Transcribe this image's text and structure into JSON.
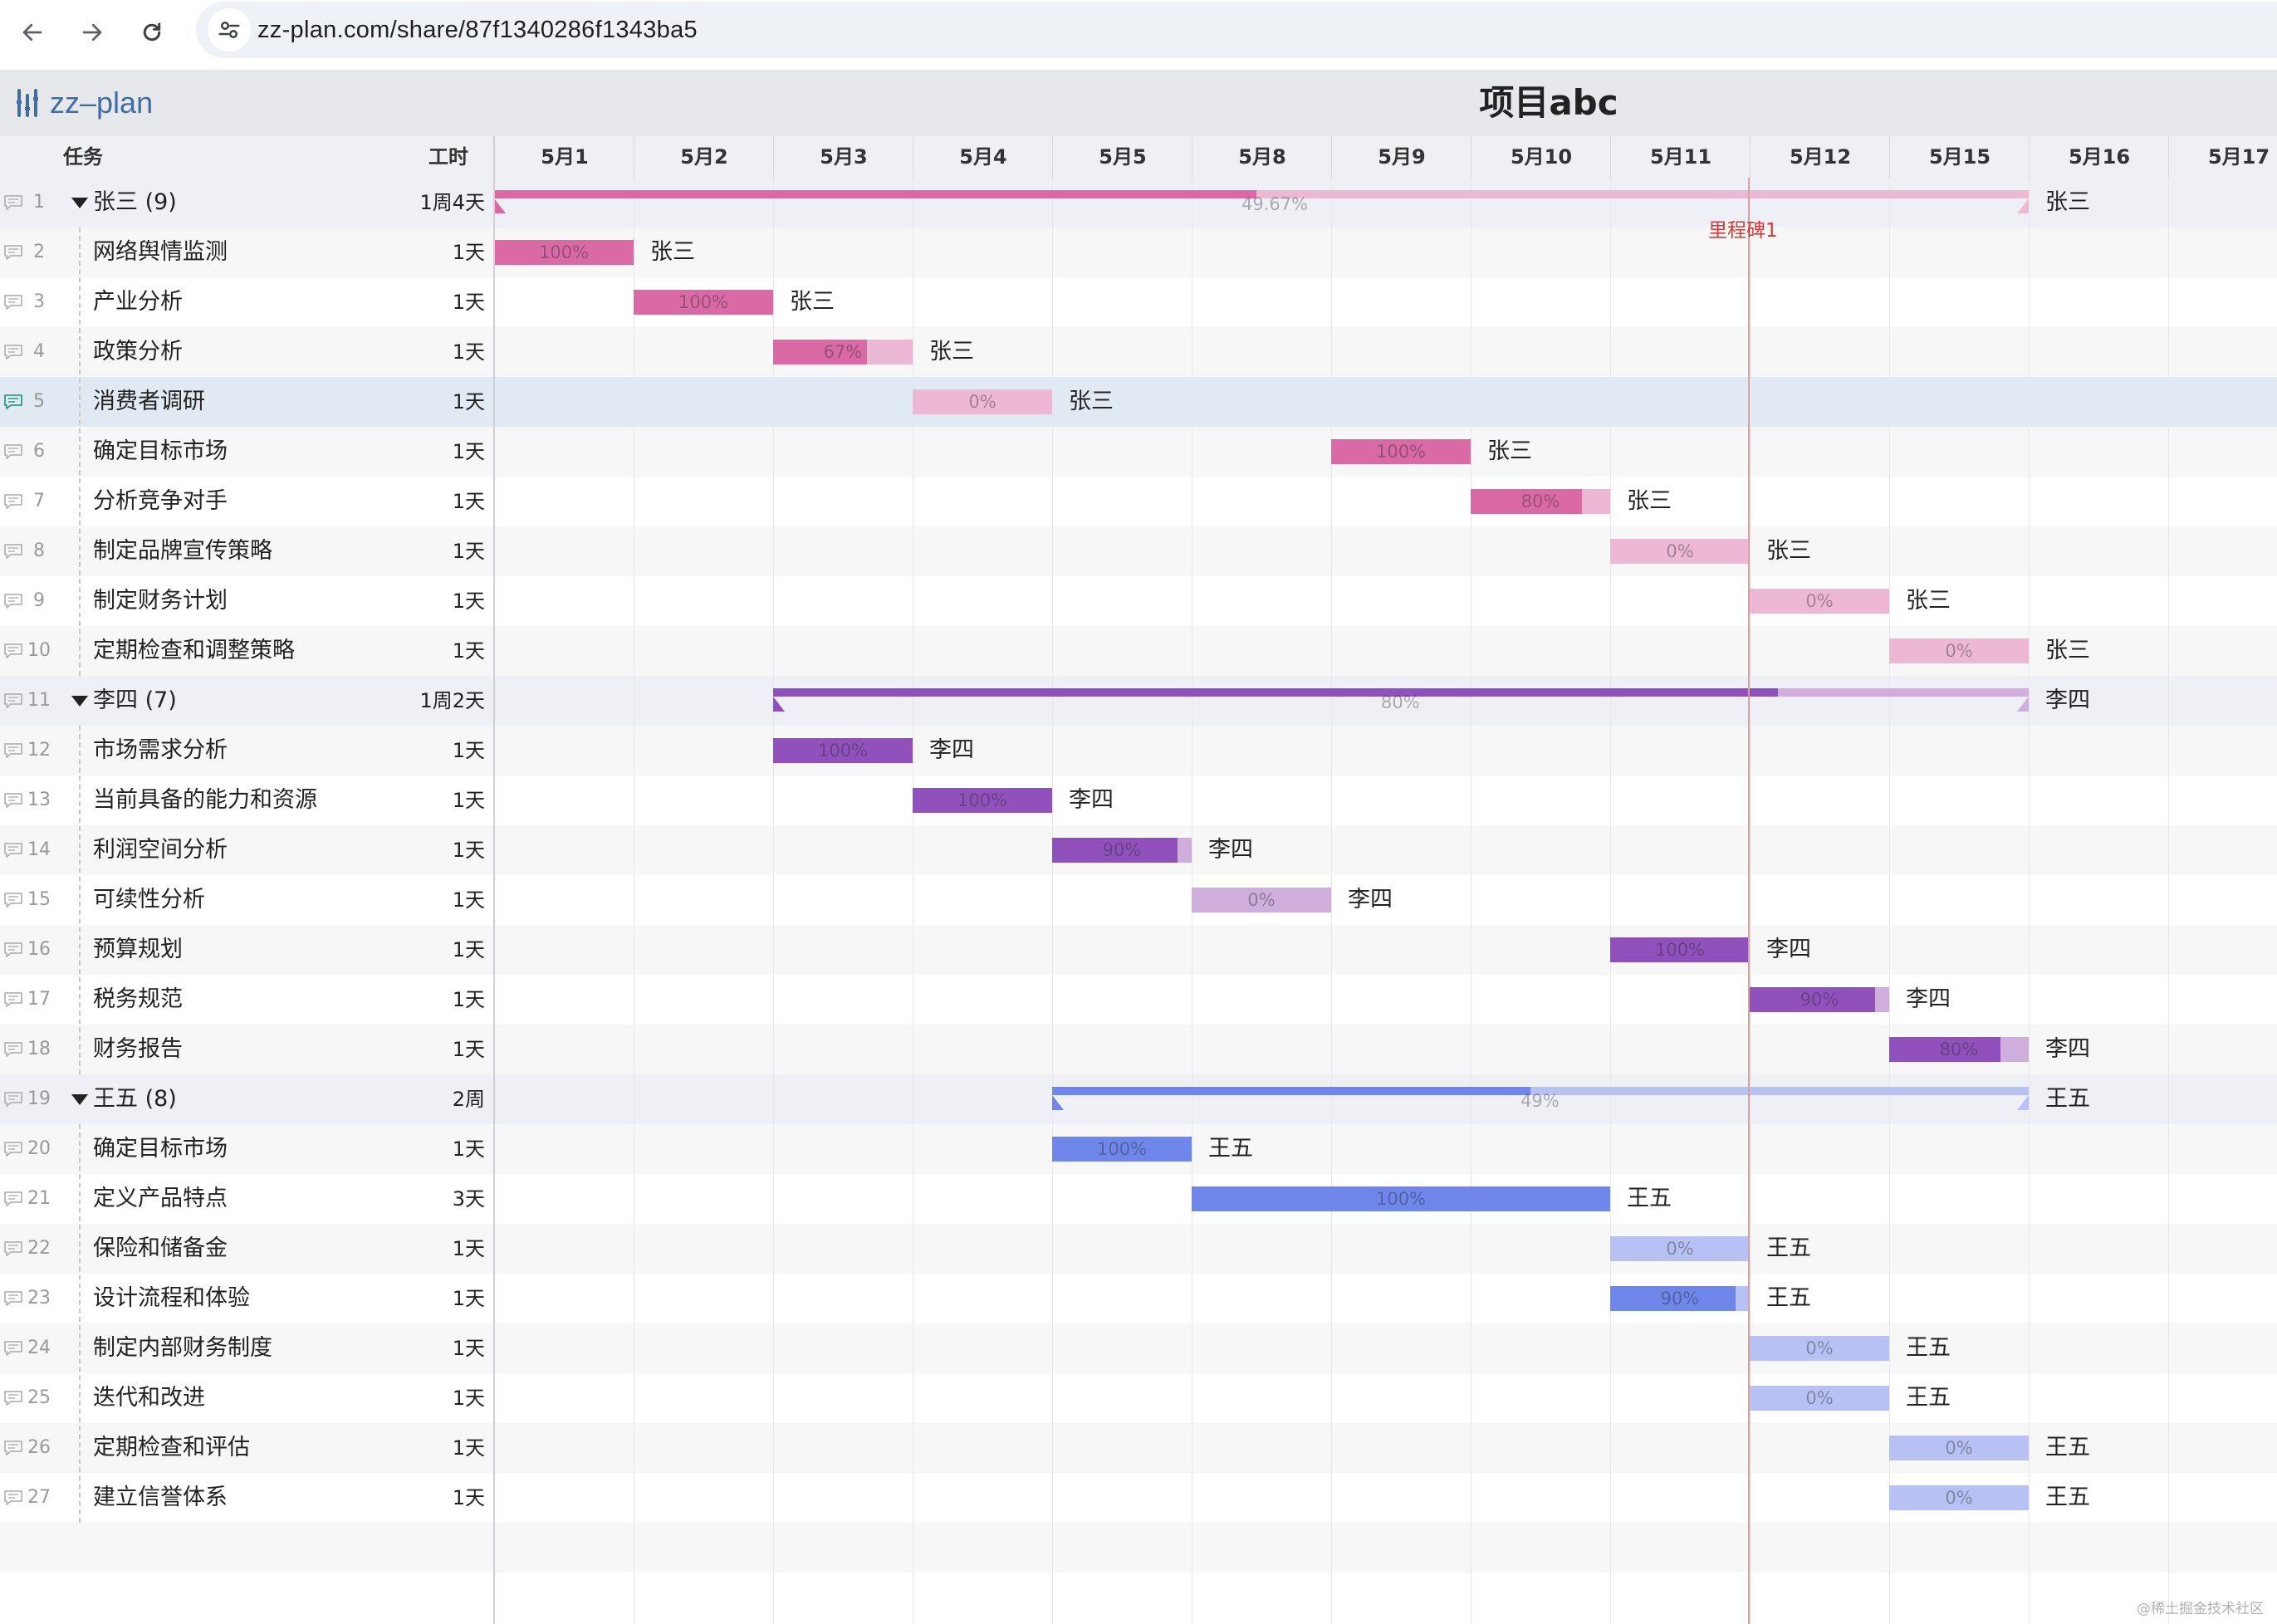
{
  "browser": {
    "url": "zz-plan.com/share/87f1340286f1343ba5",
    "icons": [
      "back-arrow-icon",
      "forward-arrow-icon",
      "reload-icon",
      "site-settings-icon"
    ]
  },
  "app": {
    "logo_text": "zz–plan",
    "project_title": "项目abc"
  },
  "table_header": {
    "task": "任务",
    "work": "工时"
  },
  "dates": [
    "5月1",
    "5月2",
    "5月3",
    "5月4",
    "5月5",
    "5月8",
    "5月9",
    "5月10",
    "5月11",
    "5月12",
    "5月15",
    "5月16",
    "5月17"
  ],
  "milestone": {
    "label": "里程碑1",
    "day_index": 9
  },
  "colors": {
    "zhangsan_done": "#da6aa6",
    "zhangsan_rest": "#ecb8d4",
    "lisi_done": "#9151bd",
    "lisi_rest": "#cfaede",
    "wangwu_done": "#6f86ea",
    "wangwu_rest": "#b7c1f4",
    "milestone": "#d33a3a"
  },
  "rows": [
    {
      "num": "1",
      "name": "张三 (9)",
      "duration": "1周4天",
      "group": true,
      "color": "zhangsan",
      "start": 0,
      "span": 11,
      "progress": 0.4967,
      "pct": "49.67%",
      "assignee": "张三"
    },
    {
      "num": "2",
      "name": "网络舆情监测",
      "duration": "1天",
      "color": "zhangsan",
      "start": 0,
      "span": 1,
      "progress": 1,
      "pct": "100%",
      "assignee": "张三"
    },
    {
      "num": "3",
      "name": "产业分析",
      "duration": "1天",
      "color": "zhangsan",
      "start": 1,
      "span": 1,
      "progress": 1,
      "pct": "100%",
      "assignee": "张三"
    },
    {
      "num": "4",
      "name": "政策分析",
      "duration": "1天",
      "color": "zhangsan",
      "start": 2,
      "span": 1,
      "progress": 0.67,
      "pct": "67%",
      "assignee": "张三"
    },
    {
      "num": "5",
      "name": "消费者调研",
      "duration": "1天",
      "color": "zhangsan",
      "start": 3,
      "span": 1,
      "progress": 0,
      "pct": "0%",
      "assignee": "张三",
      "selected": true
    },
    {
      "num": "6",
      "name": "确定目标市场",
      "duration": "1天",
      "color": "zhangsan",
      "start": 6,
      "span": 1,
      "progress": 1,
      "pct": "100%",
      "assignee": "张三"
    },
    {
      "num": "7",
      "name": "分析竞争对手",
      "duration": "1天",
      "color": "zhangsan",
      "start": 7,
      "span": 1,
      "progress": 0.8,
      "pct": "80%",
      "assignee": "张三"
    },
    {
      "num": "8",
      "name": "制定品牌宣传策略",
      "duration": "1天",
      "color": "zhangsan",
      "start": 8,
      "span": 1,
      "progress": 0,
      "pct": "0%",
      "assignee": "张三"
    },
    {
      "num": "9",
      "name": "制定财务计划",
      "duration": "1天",
      "color": "zhangsan",
      "start": 9,
      "span": 1,
      "progress": 0,
      "pct": "0%",
      "assignee": "张三"
    },
    {
      "num": "10",
      "name": "定期检查和调整策略",
      "duration": "1天",
      "color": "zhangsan",
      "start": 10,
      "span": 1,
      "progress": 0,
      "pct": "0%",
      "assignee": "张三"
    },
    {
      "num": "11",
      "name": "李四 (7)",
      "duration": "1周2天",
      "group": true,
      "color": "lisi",
      "start": 2,
      "span": 9,
      "progress": 0.8,
      "pct": "80%",
      "assignee": "李四"
    },
    {
      "num": "12",
      "name": "市场需求分析",
      "duration": "1天",
      "color": "lisi",
      "start": 2,
      "span": 1,
      "progress": 1,
      "pct": "100%",
      "assignee": "李四"
    },
    {
      "num": "13",
      "name": "当前具备的能力和资源",
      "duration": "1天",
      "color": "lisi",
      "start": 3,
      "span": 1,
      "progress": 1,
      "pct": "100%",
      "assignee": "李四"
    },
    {
      "num": "14",
      "name": "利润空间分析",
      "duration": "1天",
      "color": "lisi",
      "start": 4,
      "span": 1,
      "progress": 0.9,
      "pct": "90%",
      "assignee": "李四"
    },
    {
      "num": "15",
      "name": "可续性分析",
      "duration": "1天",
      "color": "lisi",
      "start": 5,
      "span": 1,
      "progress": 0,
      "pct": "0%",
      "assignee": "李四"
    },
    {
      "num": "16",
      "name": "预算规划",
      "duration": "1天",
      "color": "lisi",
      "start": 8,
      "span": 1,
      "progress": 1,
      "pct": "100%",
      "assignee": "李四"
    },
    {
      "num": "17",
      "name": "税务规范",
      "duration": "1天",
      "color": "lisi",
      "start": 9,
      "span": 1,
      "progress": 0.9,
      "pct": "90%",
      "assignee": "李四"
    },
    {
      "num": "18",
      "name": "财务报告",
      "duration": "1天",
      "color": "lisi",
      "start": 10,
      "span": 1,
      "progress": 0.8,
      "pct": "80%",
      "assignee": "李四"
    },
    {
      "num": "19",
      "name": "王五 (8)",
      "duration": "2周",
      "group": true,
      "color": "wangwu",
      "start": 4,
      "span": 7,
      "progress": 0.49,
      "pct": "49%",
      "assignee": "王五"
    },
    {
      "num": "20",
      "name": "确定目标市场",
      "duration": "1天",
      "color": "wangwu",
      "start": 4,
      "span": 1,
      "progress": 1,
      "pct": "100%",
      "assignee": "王五"
    },
    {
      "num": "21",
      "name": "定义产品特点",
      "duration": "3天",
      "color": "wangwu",
      "start": 5,
      "span": 3,
      "progress": 1,
      "pct": "100%",
      "assignee": "王五"
    },
    {
      "num": "22",
      "name": "保险和储备金",
      "duration": "1天",
      "color": "wangwu",
      "start": 8,
      "span": 1,
      "progress": 0,
      "pct": "0%",
      "assignee": "王五"
    },
    {
      "num": "23",
      "name": "设计流程和体验",
      "duration": "1天",
      "color": "wangwu",
      "start": 8,
      "span": 1,
      "progress": 0.9,
      "pct": "90%",
      "assignee": "王五"
    },
    {
      "num": "24",
      "name": "制定内部财务制度",
      "duration": "1天",
      "color": "wangwu",
      "start": 9,
      "span": 1,
      "progress": 0,
      "pct": "0%",
      "assignee": "王五"
    },
    {
      "num": "25",
      "name": "迭代和改进",
      "duration": "1天",
      "color": "wangwu",
      "start": 9,
      "span": 1,
      "progress": 0,
      "pct": "0%",
      "assignee": "王五"
    },
    {
      "num": "26",
      "name": "定期检查和评估",
      "duration": "1天",
      "color": "wangwu",
      "start": 10,
      "span": 1,
      "progress": 0,
      "pct": "0%",
      "assignee": "王五"
    },
    {
      "num": "27",
      "name": "建立信誉体系",
      "duration": "1天",
      "color": "wangwu",
      "start": 10,
      "span": 1,
      "progress": 0,
      "pct": "0%",
      "assignee": "王五"
    }
  ],
  "watermark": "@稀土掘金技术社区"
}
